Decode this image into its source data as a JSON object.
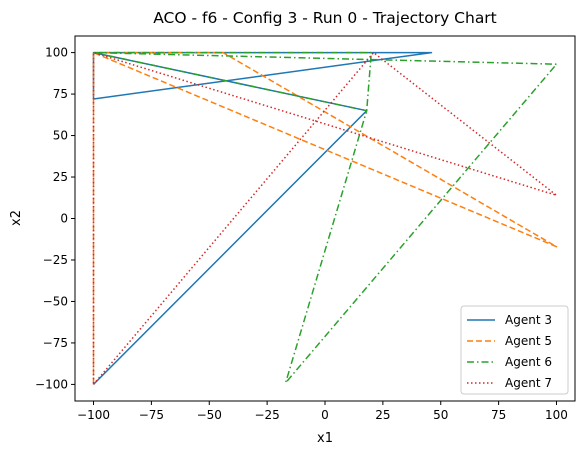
{
  "chart_data": {
    "type": "line",
    "title": "ACO - f6 - Config 3 - Run 0 - Trajectory Chart",
    "xlabel": "x1",
    "ylabel": "x2",
    "xlim": [
      -108,
      108
    ],
    "ylim": [
      -110,
      110
    ],
    "xticks": [
      -100,
      -75,
      -50,
      -25,
      0,
      25,
      50,
      75,
      100
    ],
    "yticks": [
      -100,
      -75,
      -50,
      -25,
      0,
      25,
      50,
      75,
      100
    ],
    "grid": false,
    "legend_position": "lower-right",
    "series": [
      {
        "name": "Agent 3",
        "color": "#1f77b4",
        "dash": "solid",
        "x": [
          -100,
          18,
          -100,
          46,
          -100,
          -100
        ],
        "y": [
          -100,
          65,
          100,
          100,
          72,
          100
        ]
      },
      {
        "name": "Agent 5",
        "color": "#ff7f0e",
        "dash": "dashed",
        "x": [
          -100,
          -100,
          100,
          -44,
          -100,
          -100
        ],
        "y": [
          -100,
          100,
          -17,
          100,
          100,
          -100
        ]
      },
      {
        "name": "Agent 6",
        "color": "#2ca02c",
        "dash": "dashdot",
        "x": [
          -100,
          18,
          -17,
          100,
          -100,
          20,
          18
        ],
        "y": [
          100,
          65,
          -99,
          93,
          100,
          100,
          65
        ]
      },
      {
        "name": "Agent 7",
        "color": "#d62728",
        "dash": "dotted",
        "x": [
          -100,
          21,
          100,
          -100,
          -100
        ],
        "y": [
          -100,
          100,
          14,
          100,
          -100
        ]
      }
    ]
  }
}
